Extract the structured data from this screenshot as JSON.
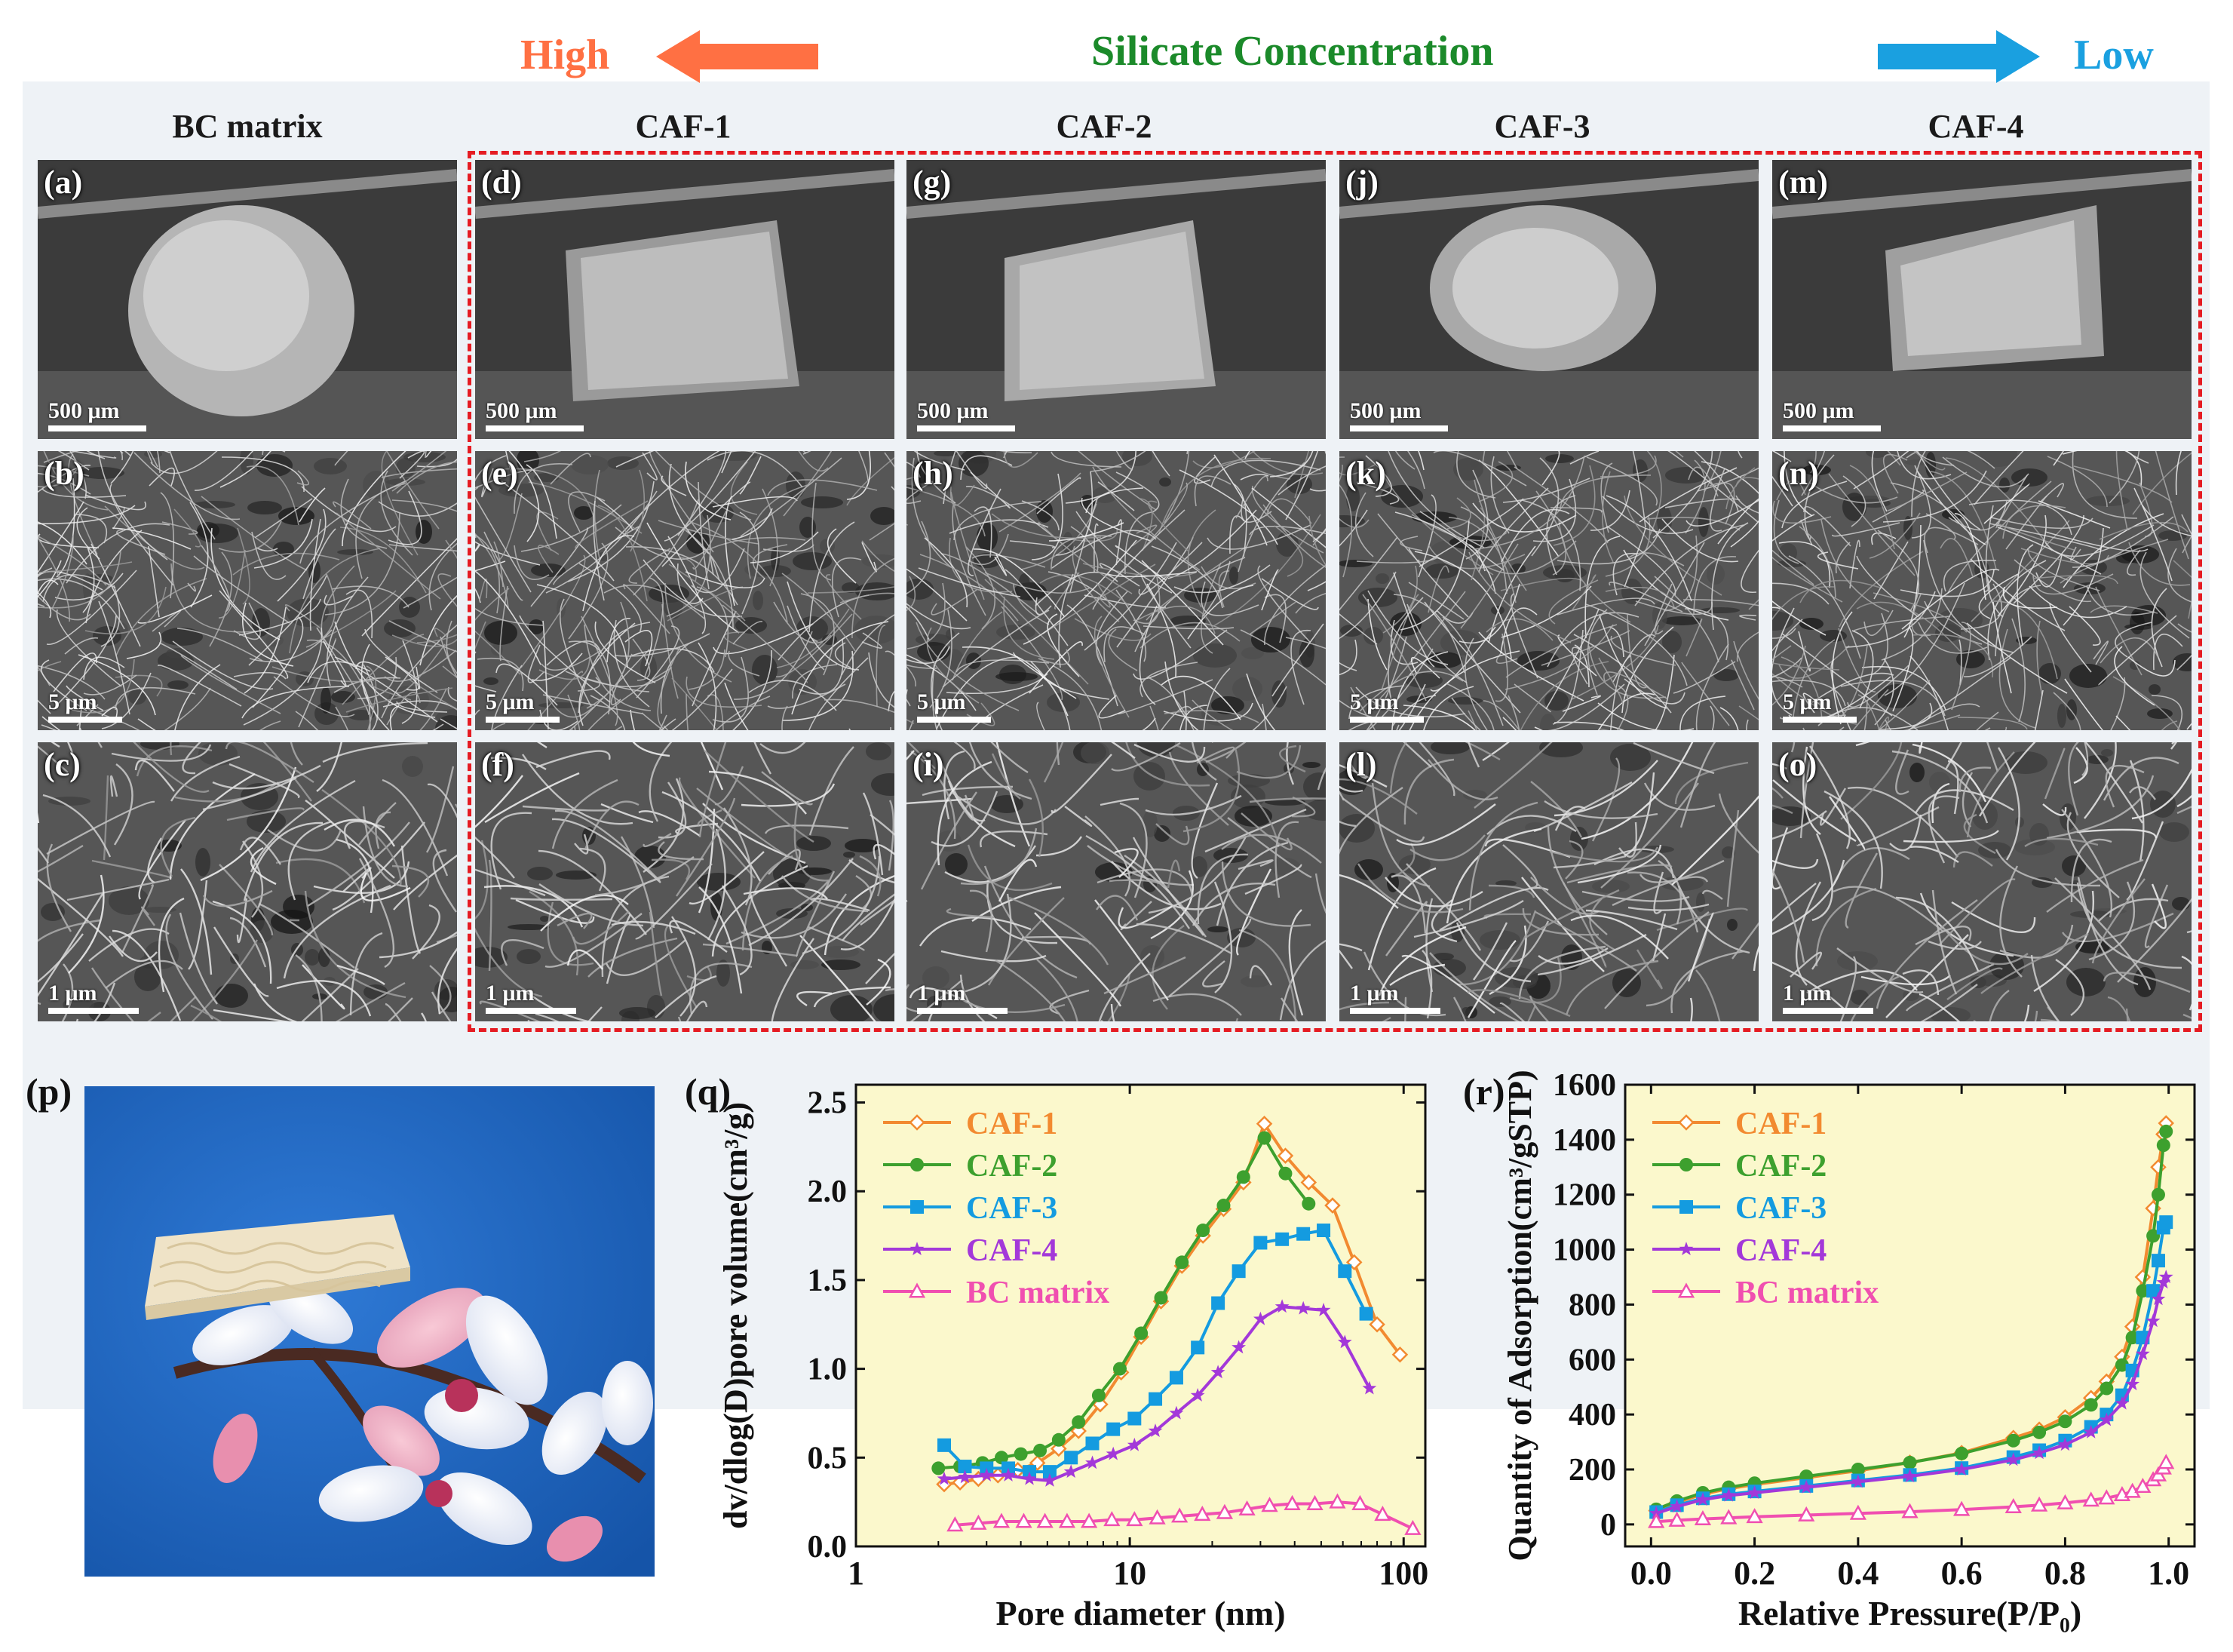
{
  "header": {
    "high_label": "High",
    "title": "Silicate Concentration",
    "low_label": "Low",
    "colors": {
      "high": "#ff7043",
      "title": "#1b8a2a",
      "low": "#1aa0e0"
    }
  },
  "columns": [
    {
      "title": "BC matrix"
    },
    {
      "title": "CAF-1"
    },
    {
      "title": "CAF-2"
    },
    {
      "title": "CAF-3"
    },
    {
      "title": "CAF-4"
    }
  ],
  "sem_panels": [
    [
      {
        "label": "(a)",
        "scale": "500 μm"
      },
      {
        "label": "(b)",
        "scale": "5 μm"
      },
      {
        "label": "(c)",
        "scale": "1 μm"
      }
    ],
    [
      {
        "label": "(d)",
        "scale": "500 μm"
      },
      {
        "label": "(e)",
        "scale": "5 μm"
      },
      {
        "label": "(f)",
        "scale": "1 μm"
      }
    ],
    [
      {
        "label": "(g)",
        "scale": "500 μm"
      },
      {
        "label": "(h)",
        "scale": "5 μm"
      },
      {
        "label": "(i)",
        "scale": "1 μm"
      }
    ],
    [
      {
        "label": "(j)",
        "scale": "500 μm"
      },
      {
        "label": "(k)",
        "scale": "5 μm"
      },
      {
        "label": "(l)",
        "scale": "1 μm"
      }
    ],
    [
      {
        "label": "(m)",
        "scale": "500 μm"
      },
      {
        "label": "(n)",
        "scale": "5 μm"
      },
      {
        "label": "(o)",
        "scale": "1 μm"
      }
    ]
  ],
  "photo": {
    "label": "(p)"
  },
  "chart_data": [
    {
      "type": "line",
      "panel_label": "(q)",
      "xlabel": "Pore diameter (nm)",
      "ylabel": "dv/dlog(D)pore volume(cm³/g)",
      "xscale": "log",
      "xlim": [
        1,
        120
      ],
      "ylim": [
        0,
        2.6
      ],
      "xticks": [
        1,
        10,
        100
      ],
      "xtick_labels": [
        "1",
        "10",
        "100"
      ],
      "yticks": [
        0,
        0.5,
        1.0,
        1.5,
        2.0,
        2.5
      ],
      "ytick_labels": [
        "0.0",
        "0.5",
        "1.0",
        "1.5",
        "2.0",
        "2.5"
      ],
      "legend_position": "top-left",
      "background": "#fbf8cc",
      "series": [
        {
          "name": "CAF-1",
          "color": "#f28a30",
          "marker": "open-diamond",
          "x": [
            2.1,
            2.4,
            2.8,
            3.3,
            3.9,
            4.6,
            5.5,
            6.5,
            7.8,
            9.3,
            11,
            13,
            15.5,
            18.5,
            22,
            26,
            31,
            37,
            45,
            55,
            66,
            80,
            97
          ],
          "y": [
            0.35,
            0.36,
            0.38,
            0.4,
            0.43,
            0.47,
            0.55,
            0.65,
            0.8,
            0.98,
            1.18,
            1.38,
            1.58,
            1.75,
            1.9,
            2.05,
            2.38,
            2.2,
            2.05,
            1.92,
            1.6,
            1.25,
            1.08
          ]
        },
        {
          "name": "CAF-2",
          "color": "#3da02e",
          "marker": "filled-circle",
          "x": [
            2.0,
            2.4,
            2.9,
            3.4,
            4.0,
            4.7,
            5.5,
            6.5,
            7.7,
            9.2,
            11,
            13,
            15.5,
            18.5,
            22,
            26,
            31,
            37,
            45
          ],
          "y": [
            0.44,
            0.45,
            0.47,
            0.5,
            0.52,
            0.54,
            0.6,
            0.7,
            0.85,
            1.0,
            1.2,
            1.4,
            1.6,
            1.78,
            1.92,
            2.08,
            2.3,
            2.1,
            1.93
          ]
        },
        {
          "name": "CAF-3",
          "color": "#149be0",
          "marker": "filled-square",
          "x": [
            2.1,
            2.5,
            3.0,
            3.6,
            4.3,
            5.1,
            6.1,
            7.3,
            8.7,
            10.4,
            12.4,
            14.8,
            17.7,
            21,
            25,
            30,
            36,
            43,
            51,
            61,
            73
          ],
          "y": [
            0.57,
            0.45,
            0.44,
            0.44,
            0.42,
            0.42,
            0.5,
            0.58,
            0.66,
            0.72,
            0.83,
            0.95,
            1.12,
            1.37,
            1.55,
            1.71,
            1.73,
            1.76,
            1.78,
            1.55,
            1.31
          ]
        },
        {
          "name": "CAF-4",
          "color": "#a338d9",
          "marker": "star",
          "x": [
            2.1,
            2.5,
            3.0,
            3.6,
            4.3,
            5.1,
            6.1,
            7.3,
            8.7,
            10.4,
            12.4,
            14.8,
            17.7,
            21,
            25,
            30,
            36,
            43,
            51,
            61,
            75
          ],
          "y": [
            0.38,
            0.39,
            0.4,
            0.4,
            0.38,
            0.37,
            0.42,
            0.47,
            0.52,
            0.57,
            0.65,
            0.75,
            0.85,
            0.98,
            1.12,
            1.28,
            1.35,
            1.34,
            1.33,
            1.15,
            0.89
          ]
        },
        {
          "name": "BC matrix",
          "color": "#f04fb0",
          "marker": "open-triangle",
          "x": [
            2.3,
            2.8,
            3.4,
            4.1,
            4.9,
            5.9,
            7.1,
            8.6,
            10.4,
            12.6,
            15.2,
            18.4,
            22.2,
            26.8,
            32.4,
            39.2,
            47.4,
            57.3,
            69.3,
            83.8,
            108
          ],
          "y": [
            0.12,
            0.13,
            0.14,
            0.14,
            0.14,
            0.14,
            0.14,
            0.15,
            0.15,
            0.16,
            0.17,
            0.18,
            0.19,
            0.21,
            0.23,
            0.24,
            0.24,
            0.25,
            0.24,
            0.18,
            0.1
          ]
        }
      ]
    },
    {
      "type": "line",
      "panel_label": "(r)",
      "xlabel": "Relative Pressure(P/P₀)",
      "ylabel": "Quantity of Adsorption(cm³/gSTP)",
      "xlim": [
        -0.05,
        1.05
      ],
      "ylim": [
        -80,
        1600
      ],
      "xticks": [
        0.0,
        0.2,
        0.4,
        0.6,
        0.8,
        1.0
      ],
      "xtick_labels": [
        "0.0",
        "0.2",
        "0.4",
        "0.6",
        "0.8",
        "1.0"
      ],
      "yticks": [
        0,
        200,
        400,
        600,
        800,
        1000,
        1200,
        1400,
        1600
      ],
      "ytick_labels": [
        "0",
        "200",
        "400",
        "600",
        "800",
        "1000",
        "1200",
        "1400",
        "1600"
      ],
      "legend_position": "top-left",
      "background": "#fbf8cc",
      "series": [
        {
          "name": "CAF-1",
          "color": "#f28a30",
          "marker": "open-diamond",
          "x": [
            0.01,
            0.05,
            0.1,
            0.15,
            0.2,
            0.3,
            0.4,
            0.5,
            0.6,
            0.7,
            0.75,
            0.8,
            0.85,
            0.88,
            0.91,
            0.93,
            0.95,
            0.97,
            0.98,
            0.99,
            0.995
          ],
          "y": [
            50,
            80,
            110,
            130,
            145,
            170,
            195,
            225,
            260,
            315,
            345,
            390,
            460,
            520,
            610,
            720,
            900,
            1150,
            1300,
            1420,
            1460
          ]
        },
        {
          "name": "CAF-2",
          "color": "#3da02e",
          "marker": "filled-circle",
          "x": [
            0.01,
            0.05,
            0.1,
            0.15,
            0.2,
            0.3,
            0.4,
            0.5,
            0.6,
            0.7,
            0.75,
            0.8,
            0.85,
            0.88,
            0.91,
            0.93,
            0.95,
            0.97,
            0.98,
            0.99,
            0.995
          ],
          "y": [
            55,
            85,
            115,
            135,
            150,
            175,
            200,
            225,
            258,
            305,
            335,
            375,
            435,
            495,
            580,
            680,
            850,
            1050,
            1200,
            1380,
            1430
          ]
        },
        {
          "name": "CAF-3",
          "color": "#149be0",
          "marker": "filled-square",
          "x": [
            0.01,
            0.05,
            0.1,
            0.15,
            0.2,
            0.3,
            0.4,
            0.5,
            0.6,
            0.7,
            0.75,
            0.8,
            0.85,
            0.88,
            0.91,
            0.93,
            0.95,
            0.97,
            0.98,
            0.99,
            0.995
          ],
          "y": [
            45,
            70,
            95,
            110,
            120,
            140,
            160,
            180,
            205,
            245,
            270,
            305,
            355,
            400,
            470,
            560,
            680,
            850,
            960,
            1080,
            1100
          ]
        },
        {
          "name": "CAF-4",
          "color": "#a338d9",
          "marker": "star",
          "x": [
            0.01,
            0.05,
            0.1,
            0.15,
            0.2,
            0.3,
            0.4,
            0.5,
            0.6,
            0.7,
            0.75,
            0.8,
            0.85,
            0.88,
            0.91,
            0.93,
            0.95,
            0.97,
            0.98,
            0.99,
            0.995
          ],
          "y": [
            40,
            65,
            90,
            105,
            115,
            135,
            155,
            175,
            200,
            235,
            260,
            290,
            335,
            380,
            440,
            510,
            620,
            740,
            820,
            880,
            900
          ]
        },
        {
          "name": "BC matrix",
          "color": "#f04fb0",
          "marker": "open-triangle",
          "x": [
            0.01,
            0.05,
            0.1,
            0.15,
            0.2,
            0.3,
            0.4,
            0.5,
            0.6,
            0.7,
            0.75,
            0.8,
            0.85,
            0.88,
            0.91,
            0.93,
            0.95,
            0.97,
            0.98,
            0.99,
            0.995
          ],
          "y": [
            10,
            15,
            20,
            24,
            28,
            34,
            40,
            46,
            54,
            64,
            70,
            78,
            88,
            96,
            108,
            120,
            138,
            162,
            180,
            205,
            225
          ]
        }
      ]
    }
  ]
}
